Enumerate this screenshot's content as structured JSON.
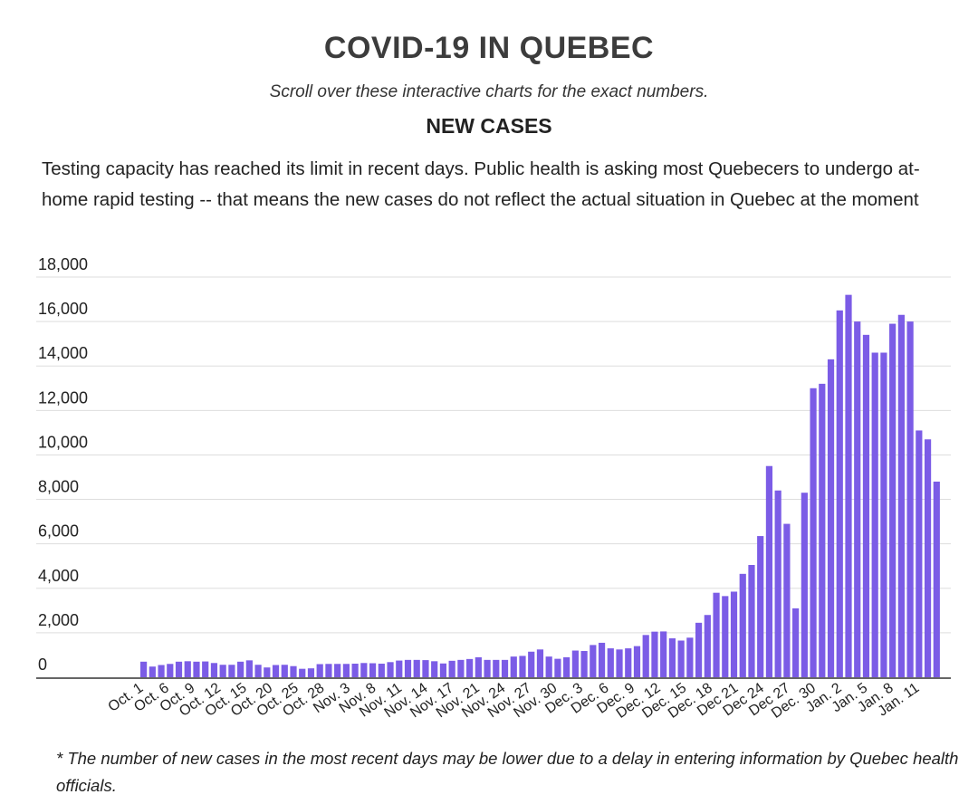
{
  "header": {
    "title": "COVID-19 IN QUEBEC",
    "subtitle": "Scroll over these interactive charts for the exact numbers.",
    "section": "NEW CASES",
    "description": "Testing capacity has reached its limit in recent days. Public health is asking most Quebecers to undergo at-home rapid testing -- that means the new cases do not reflect the actual situation in Quebec at the moment"
  },
  "footnote": "* The number of new cases in the most recent days may be lower due to a delay in entering information by Quebec health officials.",
  "colors": {
    "bar": "#7b5ce6",
    "grid": "#dddddd",
    "axis": "#666666",
    "text": "#222222"
  },
  "chart_data": {
    "type": "bar",
    "title": "NEW CASES",
    "ylim": [
      0,
      18000
    ],
    "yticks": [
      0,
      2000,
      4000,
      6000,
      8000,
      10000,
      12000,
      14000,
      16000,
      18000
    ],
    "ytick_labels": [
      "0",
      "2,000",
      "4,000",
      "6,000",
      "8,000",
      "10,000",
      "12,000",
      "14,000",
      "16,000",
      "18,000"
    ],
    "grid": true,
    "xtick_labels": [
      "Oct. 1",
      "Oct. 6",
      "Oct. 9",
      "Oct. 12",
      "Oct. 15",
      "Oct. 20",
      "Oct. 25",
      "Oct. 28",
      "Nov. 3",
      "Nov. 8",
      "Nov. 11",
      "Nov. 14",
      "Nov. 17",
      "Nov. 21",
      "Nov. 24",
      "Nov. 27",
      "Nov. 30",
      "Dec. 3",
      "Dec. 6",
      "Dec. 9",
      "Dec. 12",
      "Dec. 15",
      "Dec. 18",
      "Dec 21",
      "Dec 24",
      "Dec 27",
      "Dec. 30",
      "Jan. 2",
      "Jan. 5",
      "Jan. 8",
      "Jan. 11"
    ],
    "values": [
      700,
      480,
      550,
      600,
      700,
      720,
      700,
      710,
      640,
      560,
      560,
      700,
      760,
      560,
      440,
      550,
      560,
      500,
      380,
      400,
      590,
      600,
      600,
      600,
      610,
      640,
      630,
      610,
      680,
      750,
      780,
      780,
      770,
      720,
      620,
      740,
      780,
      820,
      900,
      780,
      780,
      780,
      930,
      960,
      1150,
      1250,
      930,
      830,
      900,
      1200,
      1180,
      1450,
      1550,
      1300,
      1250,
      1300,
      1400,
      1900,
      2050,
      2060,
      1750,
      1650,
      1780,
      2450,
      2800,
      3800,
      3650,
      3850,
      4650,
      5050,
      6350,
      9500,
      8400,
      6900,
      3100,
      8300,
      13000,
      13200,
      14300,
      16500,
      17200,
      16000,
      15400,
      14600,
      14600,
      15900,
      16300,
      16000,
      11100,
      10700,
      8800
    ]
  }
}
